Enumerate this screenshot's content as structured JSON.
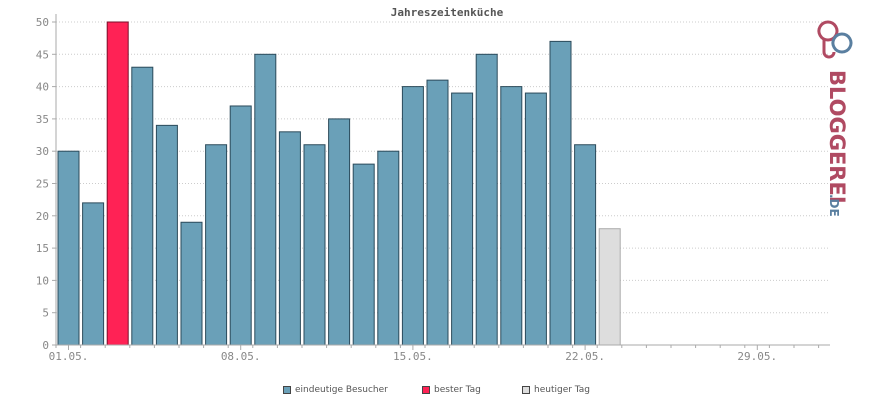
{
  "chart_data": {
    "type": "bar",
    "title": "Jahreszeitenküche",
    "ylim": [
      0,
      50
    ],
    "yticks": [
      0,
      5,
      10,
      15,
      20,
      25,
      30,
      35,
      40,
      45,
      50
    ],
    "xticks": [
      {
        "index": 0,
        "label": "01.05."
      },
      {
        "index": 7,
        "label": "08.05."
      },
      {
        "index": 14,
        "label": "15.05."
      },
      {
        "index": 21,
        "label": "22.05."
      },
      {
        "index": 28,
        "label": "29.05."
      }
    ],
    "days": 31,
    "values": [
      30,
      22,
      50,
      43,
      34,
      19,
      31,
      37,
      45,
      33,
      31,
      35,
      28,
      30,
      40,
      41,
      39,
      45,
      40,
      39,
      47,
      31,
      18
    ],
    "best_day_index": 2,
    "today_index": 22,
    "grid": true,
    "legend_position": "bottom-center",
    "colors": {
      "visitors": "#6aa0b8",
      "best": "#ff2255",
      "today": "#dddddd",
      "axis": "#aaaaaa",
      "grid": "#cccccc"
    },
    "legend": [
      {
        "label": "eindeutige Besucher",
        "color": "#6aa0b8"
      },
      {
        "label": "bester Tag",
        "color": "#ff2255"
      },
      {
        "label": "heutiger Tag",
        "color": "#dddddd"
      }
    ]
  },
  "branding": {
    "logo_text": "BLOGGEREI",
    "logo_suffix": ".DE",
    "logo_main_color": "#b04a62",
    "logo_suffix_color": "#5a7fa0"
  }
}
